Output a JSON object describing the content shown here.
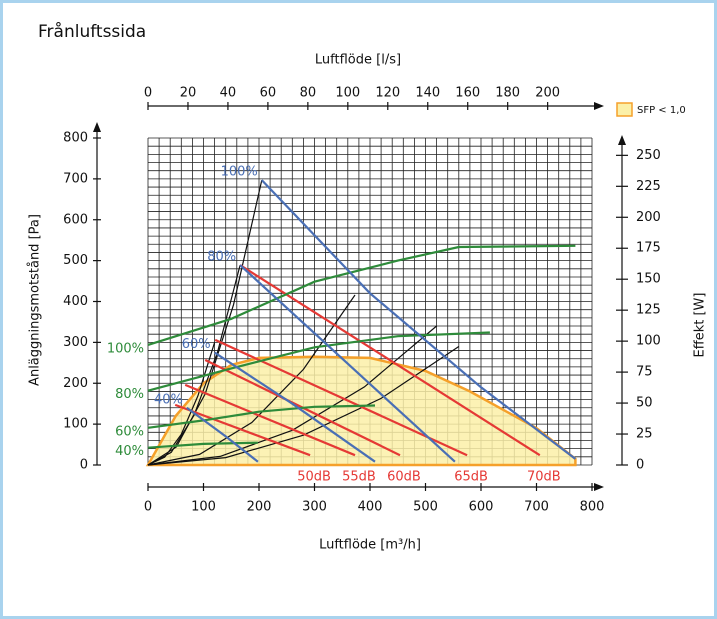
{
  "chart_data": {
    "type": "line",
    "title": "Frånluftssida",
    "x_label": "Luftflöde [m³/h]",
    "x2_label": "Luftflöde [l/s]",
    "y_label": "Anläggningsmotstånd [Pa]",
    "y2_label": "Effekt [W]",
    "xlim": [
      0,
      800
    ],
    "xticks": [
      0,
      100,
      200,
      300,
      400,
      500,
      600,
      700,
      800
    ],
    "x2lim": [
      0,
      222.2
    ],
    "x2ticks": [
      0,
      20,
      40,
      60,
      80,
      100,
      120,
      140,
      160,
      180,
      200
    ],
    "ylim": [
      0,
      800
    ],
    "yticks": [
      0,
      100,
      200,
      300,
      400,
      500,
      600,
      700,
      800
    ],
    "y2lim": [
      0,
      264
    ],
    "y2ticks": [
      0,
      25,
      50,
      75,
      100,
      125,
      150,
      175,
      200,
      225,
      250
    ],
    "grid": true,
    "grid_subdivisions": 5,
    "legend": "top-right",
    "series": [
      {
        "name": "SFP < 1,0",
        "group": "area",
        "color": "#f5a02a",
        "fill": "#fbf0a8",
        "x": [
          0,
          50,
          100,
          150,
          200,
          300,
          400,
          500,
          580,
          700,
          770,
          770
        ],
        "values": [
          0,
          120,
          200,
          245,
          262,
          265,
          262,
          230,
          180,
          90,
          15,
          0
        ]
      },
      {
        "group": "system",
        "color": "#111",
        "x": [
          0,
          51,
          103,
          154,
          205
        ],
        "values": [
          0,
          44,
          174,
          392,
          697
        ]
      },
      {
        "group": "system",
        "color": "#111",
        "x": [
          0,
          42,
          83,
          125,
          166
        ],
        "values": [
          0,
          31,
          122,
          275,
          489
        ]
      },
      {
        "group": "system",
        "color": "#111",
        "x": [
          0,
          30,
          60,
          90,
          120
        ],
        "values": [
          0,
          19,
          75,
          169,
          300
        ]
      },
      {
        "group": "system",
        "color": "#111",
        "x": [
          0,
          93,
          187,
          280,
          373
        ],
        "values": [
          0,
          26,
          104,
          234,
          416
        ]
      },
      {
        "group": "system",
        "color": "#111",
        "x": [
          0,
          130,
          260,
          390,
          520
        ],
        "values": [
          0,
          21,
          85,
          191,
          340
        ]
      },
      {
        "group": "system",
        "color": "#111",
        "x": [
          0,
          140,
          280,
          420,
          560
        ],
        "values": [
          0,
          18,
          73,
          163,
          290
        ]
      },
      {
        "name": "50dB",
        "group": "sound",
        "color": "#e53935",
        "x": [
          49,
          292
        ],
        "values": [
          147,
          24
        ]
      },
      {
        "name": "55dB",
        "group": "sound",
        "color": "#e53935",
        "x": [
          67,
          373
        ],
        "values": [
          196,
          24
        ]
      },
      {
        "name": "60dB",
        "group": "sound",
        "color": "#e53935",
        "x": [
          103,
          454
        ],
        "values": [
          257,
          24
        ]
      },
      {
        "name": "65dB",
        "group": "sound",
        "color": "#e53935",
        "x": [
          121,
          575
        ],
        "values": [
          306,
          24
        ]
      },
      {
        "name": "70dB",
        "group": "sound",
        "color": "#e53935",
        "x": [
          166,
          706
        ],
        "values": [
          489,
          24
        ]
      },
      {
        "name": "100%",
        "group": "power",
        "axis": "y2",
        "color": "#2e8b3a",
        "x": [
          0,
          150,
          300,
          450,
          560,
          770
        ],
        "values": [
          97,
          118,
          148,
          165,
          176,
          177
        ]
      },
      {
        "name": "80%",
        "group": "power",
        "axis": "y2",
        "color": "#2e8b3a",
        "x": [
          0,
          150,
          300,
          450,
          616
        ],
        "values": [
          60,
          78,
          95,
          104,
          107
        ]
      },
      {
        "name": "60%",
        "group": "power",
        "axis": "y2",
        "color": "#2e8b3a",
        "x": [
          0,
          100,
          200,
          300,
          409
        ],
        "values": [
          30,
          36,
          43,
          47,
          48
        ]
      },
      {
        "name": "40%",
        "group": "power",
        "axis": "y2",
        "color": "#2e8b3a",
        "x": [
          0,
          100,
          198
        ],
        "values": [
          14,
          17,
          18
        ]
      },
      {
        "name": "100%",
        "group": "speed",
        "color": "#4a6fb5",
        "x": [
          205,
          400,
          600,
          770
        ],
        "values": [
          697,
          420,
          190,
          15
        ]
      },
      {
        "name": "80%",
        "group": "speed",
        "color": "#4a6fb5",
        "x": [
          166,
          350,
          553
        ],
        "values": [
          489,
          260,
          8
        ]
      },
      {
        "name": "60%",
        "group": "speed",
        "color": "#4a6fb5",
        "x": [
          120,
          260,
          409
        ],
        "values": [
          275,
          150,
          8
        ]
      },
      {
        "name": "40%",
        "group": "speed",
        "color": "#4a6fb5",
        "x": [
          70,
          140,
          198
        ],
        "values": [
          140,
          70,
          8
        ]
      }
    ]
  }
}
